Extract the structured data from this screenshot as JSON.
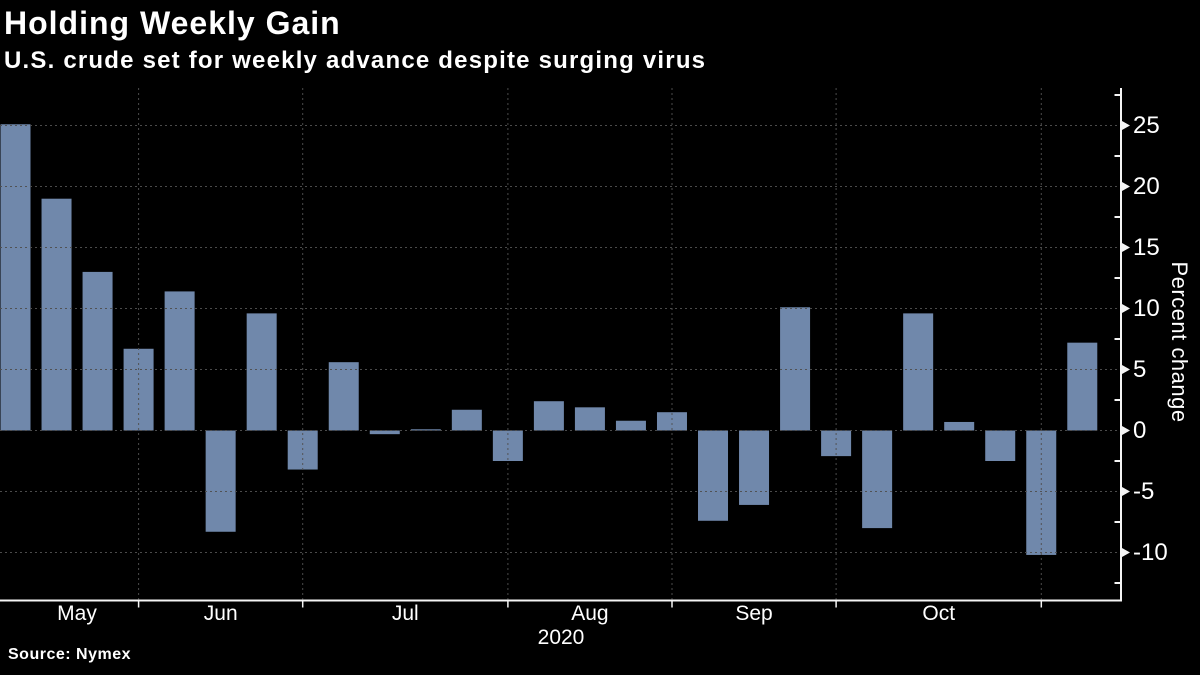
{
  "header": {
    "title": "Holding Weekly Gain",
    "subtitle": "U.S. crude set for weekly advance despite surging virus"
  },
  "footer": {
    "source": "Source: Nymex"
  },
  "chart_data": {
    "type": "bar",
    "title": "Holding Weekly Gain",
    "subtitle": "U.S. crude set for weekly advance despite surging virus",
    "xlabel": "",
    "ylabel": "Percent change",
    "source": "Source: Nymex",
    "values": [
      25.1,
      19.0,
      13.0,
      6.7,
      11.4,
      -8.3,
      9.6,
      -3.2,
      5.6,
      -0.3,
      0.1,
      1.7,
      -2.5,
      2.4,
      1.9,
      0.8,
      1.5,
      -7.4,
      -6.1,
      10.1,
      -2.1,
      -8.0,
      9.6,
      0.7,
      -2.5,
      -10.2,
      7.2
    ],
    "bar_unit": "weekly percent change",
    "x_axis": {
      "year_label": "2020",
      "months": [
        {
          "label": "May",
          "gridline_at_bar": 4
        },
        {
          "label": "Jun",
          "gridline_at_bar": 8
        },
        {
          "label": "Jul",
          "gridline_at_bar": 13
        },
        {
          "label": "Aug",
          "gridline_at_bar": 17
        },
        {
          "label": "Sep",
          "gridline_at_bar": 21
        },
        {
          "label": "Oct",
          "gridline_at_bar": 26
        }
      ]
    },
    "yticks": [
      25,
      20,
      15,
      10,
      5,
      0,
      -5,
      -10
    ],
    "minor_ytick_step": 2.5,
    "ylim": [
      -13.9,
      28.1
    ],
    "grid": "dashed",
    "legend": "none",
    "colors": {
      "bar": "#7088ab",
      "grid": "#4f4f4f",
      "axis": "#f5f5f5",
      "text": "#ffffff",
      "background": "#000000"
    }
  }
}
